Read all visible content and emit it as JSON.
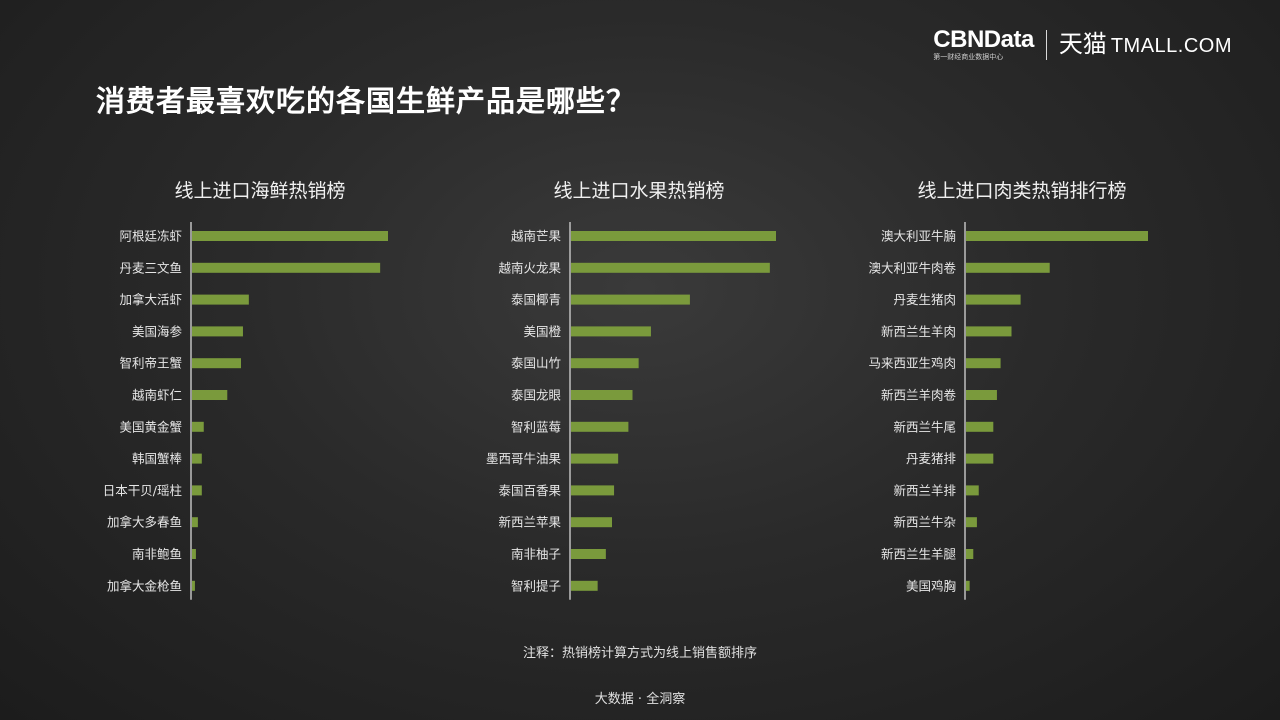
{
  "header": {
    "title": "消费者最喜欢吃的各国生鲜产品是哪些？",
    "logo_cbn": "CBNData",
    "logo_cbn_sub": "第一财经商业数据中心",
    "logo_tmall_cn": "天猫",
    "logo_tmall_en": "TMALL.COM"
  },
  "footer": {
    "note": "注释：热销榜计算方式为线上销售额排序",
    "source": "大数据 · 全洞察"
  },
  "colors": {
    "bar": "#7a9a3c",
    "axis": "#bfbfbf",
    "label": "#e6e6e6"
  },
  "chart_data": [
    {
      "type": "bar",
      "orientation": "horizontal",
      "title": "线上进口海鲜热销榜",
      "categories": [
        "阿根廷冻虾",
        "丹麦三文鱼",
        "加拿大活虾",
        "美国海参",
        "智利帝王蟹",
        "越南虾仁",
        "美国黄金蟹",
        "韩国蟹棒",
        "日本干贝/瑶柱",
        "加拿大多春鱼",
        "南非鲍鱼",
        "加拿大金枪鱼"
      ],
      "values": [
        100,
        96,
        29,
        26,
        25,
        18,
        6,
        5,
        5,
        3,
        2,
        1.5
      ],
      "xlim": [
        0,
        100
      ]
    },
    {
      "type": "bar",
      "orientation": "horizontal",
      "title": "线上进口水果热销榜",
      "categories": [
        "越南芒果",
        "越南火龙果",
        "泰国椰青",
        "美国橙",
        "泰国山竹",
        "泰国龙眼",
        "智利蓝莓",
        "墨西哥牛油果",
        "泰国百香果",
        "新西兰苹果",
        "南非柚子",
        "智利提子"
      ],
      "values": [
        100,
        97,
        58,
        39,
        33,
        30,
        28,
        23,
        21,
        20,
        17,
        13
      ],
      "xlim": [
        0,
        100
      ]
    },
    {
      "type": "bar",
      "orientation": "horizontal",
      "title": "线上进口肉类热销排行榜",
      "categories": [
        "澳大利亚牛腩",
        "澳大利亚牛肉卷",
        "丹麦生猪肉",
        "新西兰生羊肉",
        "马来西亚生鸡肉",
        "新西兰羊肉卷",
        "新西兰牛尾",
        "丹麦猪排",
        "新西兰羊排",
        "新西兰牛杂",
        "新西兰生羊腿",
        "美国鸡胸"
      ],
      "values": [
        100,
        46,
        30,
        25,
        19,
        17,
        15,
        15,
        7,
        6,
        4,
        2
      ],
      "xlim": [
        0,
        100
      ]
    }
  ]
}
